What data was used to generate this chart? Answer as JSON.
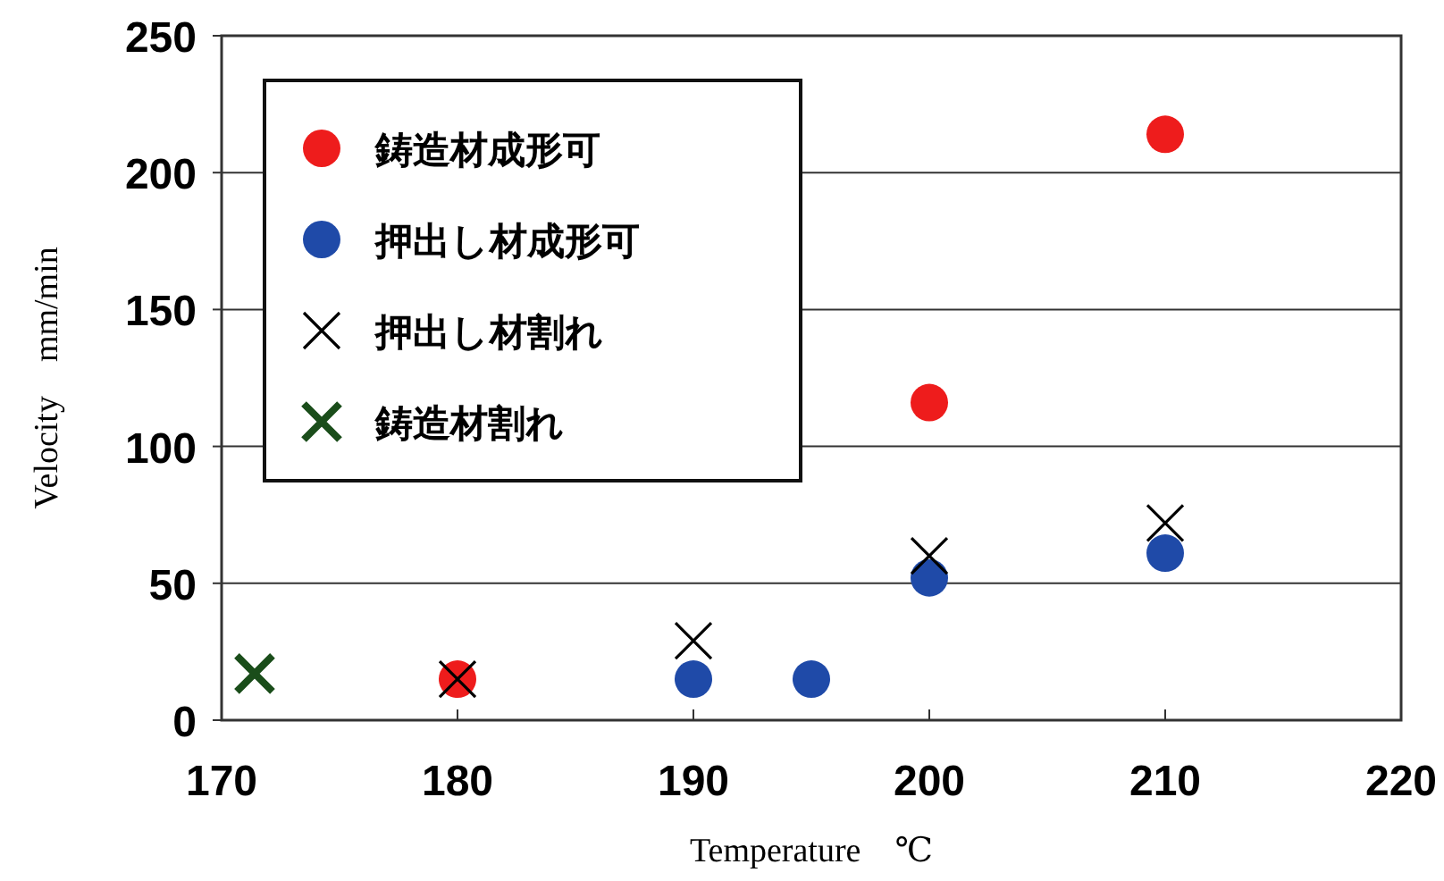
{
  "chart_data": {
    "type": "scatter",
    "xlabel": "Temperature　℃",
    "ylabel": "Velocity　mm/min",
    "xlim": [
      170,
      220
    ],
    "xticks": [
      170,
      180,
      190,
      200,
      210,
      220
    ],
    "ylim": [
      0,
      250
    ],
    "yticks": [
      0,
      50,
      100,
      150,
      200,
      250
    ],
    "grid": "y",
    "legend": "top left",
    "series": [
      {
        "name": "鋳造材成形可",
        "color": "#ee1c1c",
        "marker": "circle",
        "x": [
          180,
          200,
          210
        ],
        "values": [
          15,
          116,
          214
        ]
      },
      {
        "name": "押出し材成形可",
        "color": "#1f4aa8",
        "marker": "circle",
        "x": [
          190,
          195,
          200,
          210
        ],
        "values": [
          15,
          15,
          52,
          61
        ]
      },
      {
        "name": "押出し材割れ",
        "color": "#000000",
        "marker": "cross",
        "x": [
          180,
          190,
          200,
          210
        ],
        "values": [
          15,
          29,
          60,
          72
        ]
      },
      {
        "name": "鋳造材割れ",
        "color": "#1a4d1a",
        "marker": "cross",
        "x": [
          171.4
        ],
        "values": [
          17
        ]
      }
    ]
  }
}
